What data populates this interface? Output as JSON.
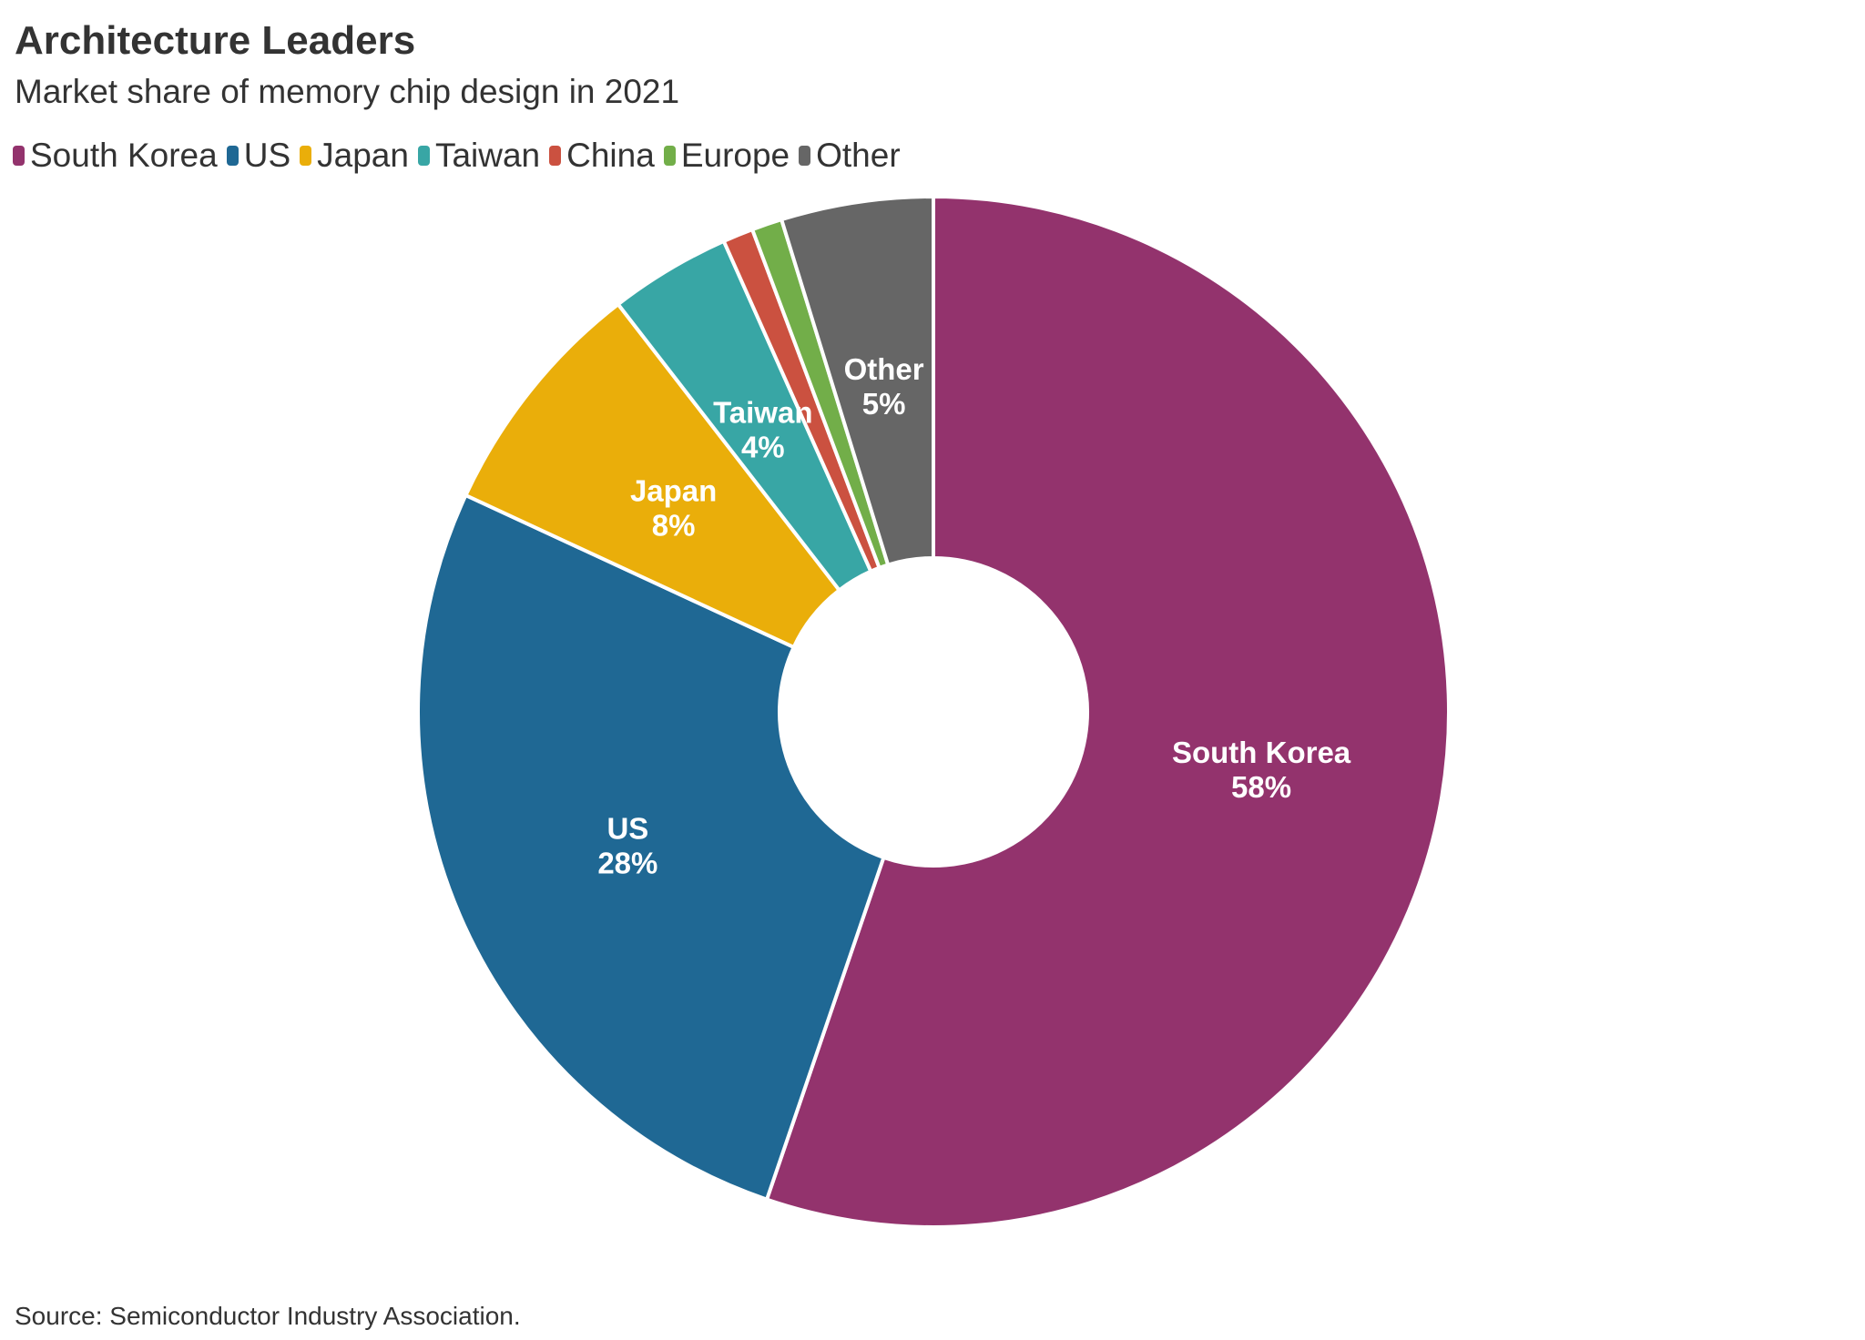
{
  "chart_data": {
    "type": "pie",
    "donut": true,
    "title": "Architecture Leaders",
    "subtitle": "Market share of memory chip design in 2021",
    "categories": [
      "South Korea",
      "US",
      "Japan",
      "Taiwan",
      "China",
      "Europe",
      "Other"
    ],
    "values": [
      58,
      28,
      8,
      4,
      1,
      1,
      5
    ],
    "value_labels": [
      "58%",
      "28%",
      "8%",
      "4%",
      "",
      "",
      "5%"
    ],
    "colors": [
      "#93336D",
      "#1F6894",
      "#EAAE0A",
      "#38A6A5",
      "#CB5140",
      "#72AE49",
      "#666666"
    ],
    "legend_position": "top-left",
    "source": "Source: Semiconductor Industry Association."
  }
}
